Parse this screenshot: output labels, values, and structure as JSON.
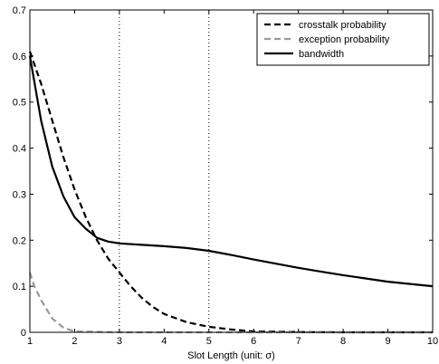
{
  "chart_data": {
    "type": "line",
    "title": "",
    "xlabel": "Slot Length (unit: σ)",
    "ylabel": "",
    "xlim": [
      1,
      10
    ],
    "ylim": [
      0,
      0.7
    ],
    "x_ticks": [
      1,
      2,
      3,
      4,
      5,
      6,
      7,
      8,
      9,
      10
    ],
    "y_ticks": [
      0,
      0.1,
      0.2,
      0.3,
      0.4,
      0.5,
      0.6,
      0.7
    ],
    "grid": false,
    "legend_position": "top-right",
    "vertical_reference_lines": [
      3,
      5
    ],
    "series": [
      {
        "name": "crosstalk probability",
        "style": "dashed",
        "color": "#000000",
        "x": [
          1,
          1.25,
          1.5,
          1.75,
          2,
          2.25,
          2.5,
          2.75,
          3,
          3.25,
          3.5,
          3.75,
          4,
          4.5,
          5,
          5.5,
          6,
          7,
          8,
          9,
          10
        ],
        "y": [
          0.61,
          0.54,
          0.46,
          0.38,
          0.31,
          0.25,
          0.2,
          0.16,
          0.13,
          0.1,
          0.075,
          0.055,
          0.04,
          0.022,
          0.012,
          0.006,
          0.002,
          0.0005,
          0,
          0,
          0
        ]
      },
      {
        "name": "exception probability",
        "style": "dashed",
        "color": "#999999",
        "x": [
          1,
          1.1,
          1.25,
          1.5,
          1.75,
          2,
          3,
          4,
          5,
          6,
          7,
          8,
          9,
          10
        ],
        "y": [
          0.13,
          0.1,
          0.07,
          0.03,
          0.01,
          0.002,
          0,
          0,
          0,
          0,
          0,
          0,
          0,
          0
        ]
      },
      {
        "name": "bandwidth",
        "style": "solid",
        "color": "#000000",
        "x": [
          1,
          1.25,
          1.5,
          1.75,
          2,
          2.25,
          2.5,
          2.75,
          3,
          3.5,
          4,
          4.5,
          5,
          5.5,
          6,
          6.5,
          7,
          7.5,
          8,
          8.5,
          9,
          9.5,
          10
        ],
        "y": [
          0.6,
          0.46,
          0.36,
          0.295,
          0.25,
          0.225,
          0.205,
          0.197,
          0.193,
          0.19,
          0.187,
          0.183,
          0.177,
          0.168,
          0.158,
          0.149,
          0.14,
          0.132,
          0.124,
          0.117,
          0.11,
          0.105,
          0.1
        ]
      }
    ]
  }
}
